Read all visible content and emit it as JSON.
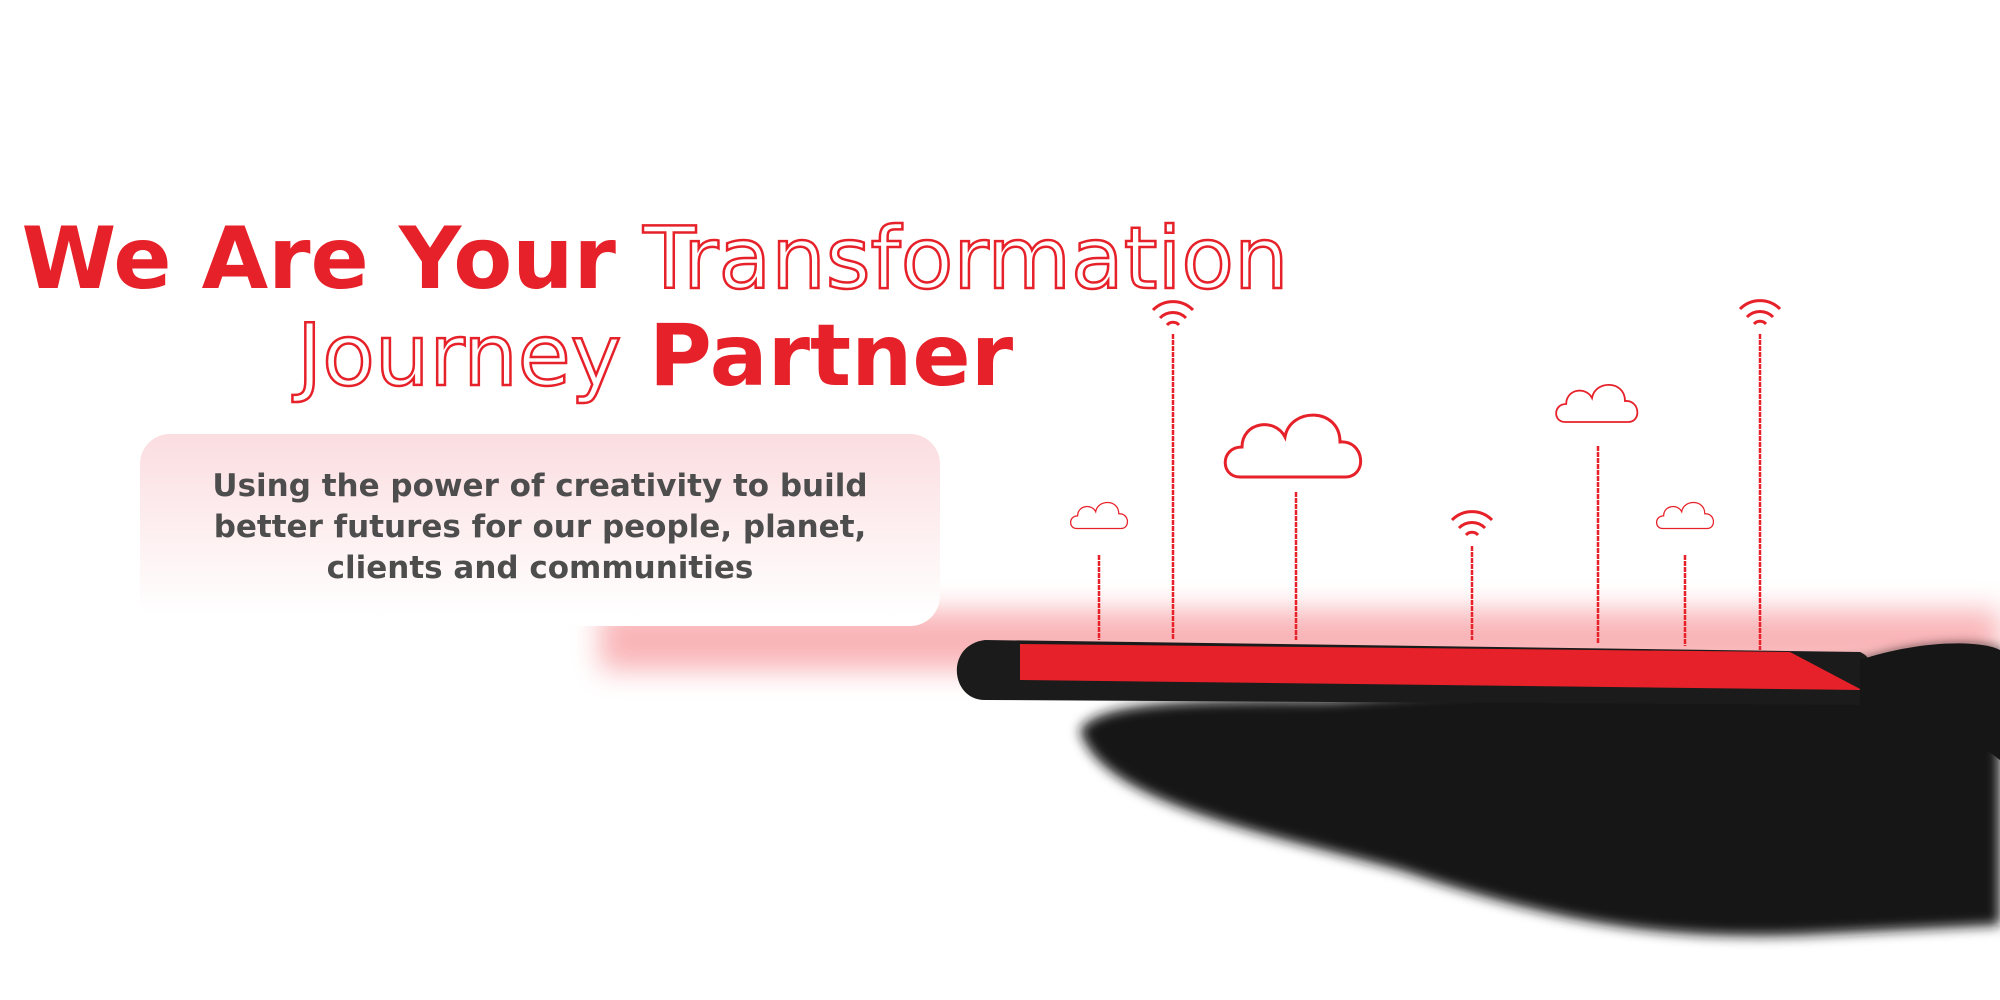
{
  "hero": {
    "title": {
      "line1_bold": "We Are Your",
      "line1_outline": "Transformation",
      "line2_outline": "Journey",
      "line2_bold": "Partner"
    },
    "description": "Using the power of creativity to build better futures for our people, planet, clients and communities"
  }
}
